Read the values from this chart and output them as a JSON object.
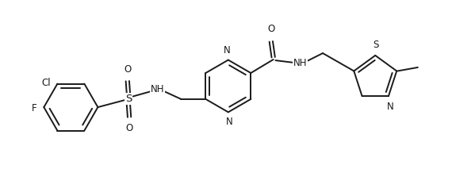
{
  "background_color": "#ffffff",
  "line_color": "#1a1a1a",
  "line_width": 1.4,
  "font_size": 8.5,
  "figsize": [
    5.7,
    2.18
  ],
  "dpi": 100,
  "xlim": [
    0,
    10
  ],
  "ylim": [
    0,
    3.82
  ]
}
